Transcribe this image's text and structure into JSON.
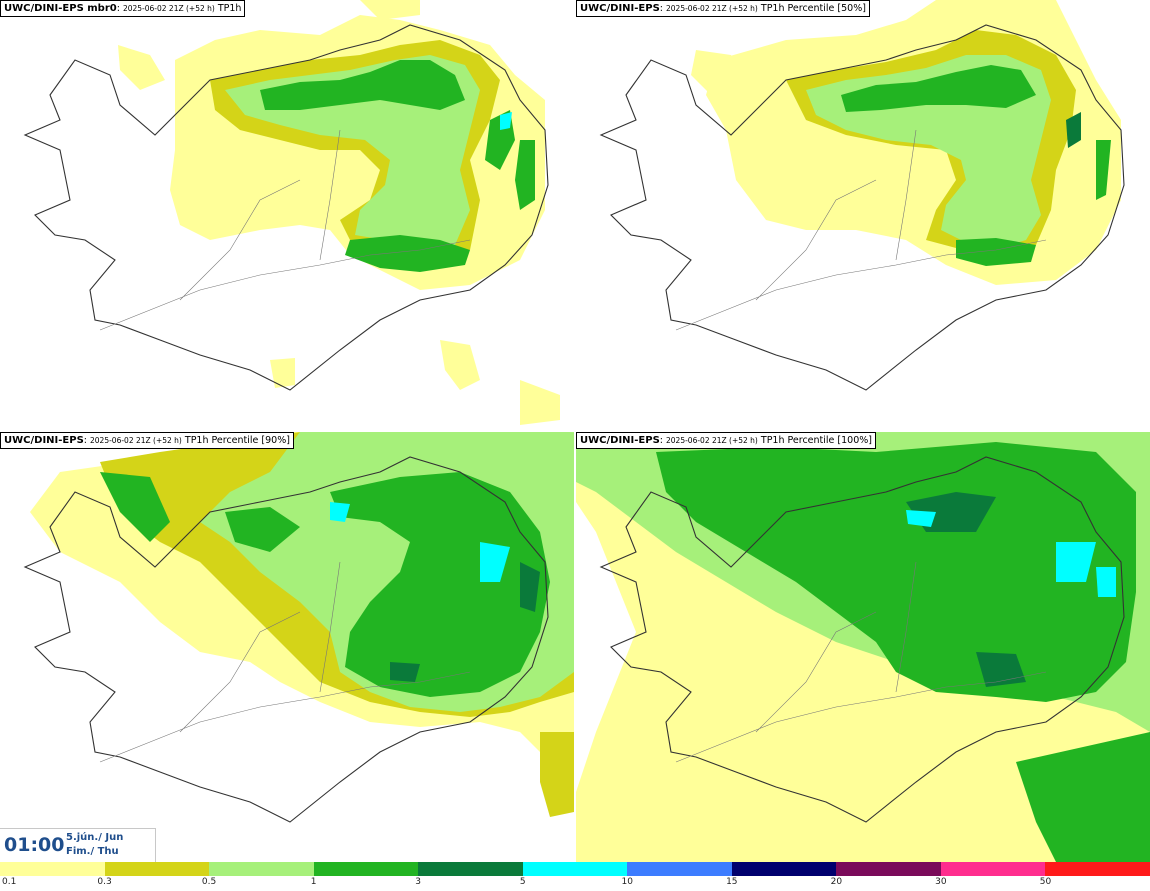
{
  "panels": [
    {
      "model": "UWC/DINI-EPS mbr0",
      "run": "2025-06-02 21Z (+52 h)",
      "field": "TP1h"
    },
    {
      "model": "UWC/DINI-EPS",
      "run": "2025-06-02 21Z (+52 h)",
      "field": "TP1h Percentile [50%]"
    },
    {
      "model": "UWC/DINI-EPS",
      "run": "2025-06-02 21Z (+52 h)",
      "field": "TP1h Percentile [90%]"
    },
    {
      "model": "UWC/DINI-EPS",
      "run": "2025-06-02 21Z (+52 h)",
      "field": "TP1h Percentile [100%]"
    }
  ],
  "valid_time": {
    "time": "01:00",
    "date_line1": "5.jún./ Jun",
    "date_line2": "Fim./ Thu"
  },
  "colorbar": {
    "colors": [
      "#ffff99",
      "#d4d418",
      "#a6f07a",
      "#22b422",
      "#0a7a3a",
      "#00ffff",
      "#3c7cff",
      "#00006e",
      "#7a0a5a",
      "#ff2d8e",
      "#ff1a1a"
    ],
    "labels": [
      "0.1",
      "0.3",
      "0.5",
      "1",
      "3",
      "5",
      "10",
      "15",
      "20",
      "30",
      "50"
    ]
  }
}
